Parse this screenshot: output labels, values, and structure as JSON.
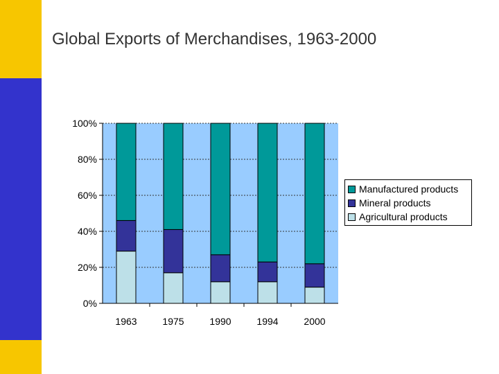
{
  "page": {
    "title": "Global Exports of Merchandises, 1963-2000"
  },
  "colors": {
    "plot_bg": "#99ccff",
    "strip_yellow": "#f7c600",
    "strip_blue": "#3333cc"
  },
  "chart_data": {
    "type": "bar",
    "stacked": "percent",
    "categories": [
      "1963",
      "1975",
      "1990",
      "1994",
      "2000"
    ],
    "series": [
      {
        "name": "Agricultural products",
        "color": "#bde0e8",
        "values": [
          29,
          17,
          12,
          12,
          9
        ]
      },
      {
        "name": "Mineral products",
        "color": "#333399",
        "values": [
          17,
          24,
          15,
          11,
          13
        ]
      },
      {
        "name": "Manufactured products",
        "color": "#009999",
        "values": [
          54,
          59,
          73,
          77,
          78
        ]
      }
    ],
    "yticks": [
      "0%",
      "20%",
      "40%",
      "60%",
      "80%",
      "100%"
    ],
    "ylim": [
      0,
      100
    ],
    "grid": true,
    "legend_position": "right"
  }
}
